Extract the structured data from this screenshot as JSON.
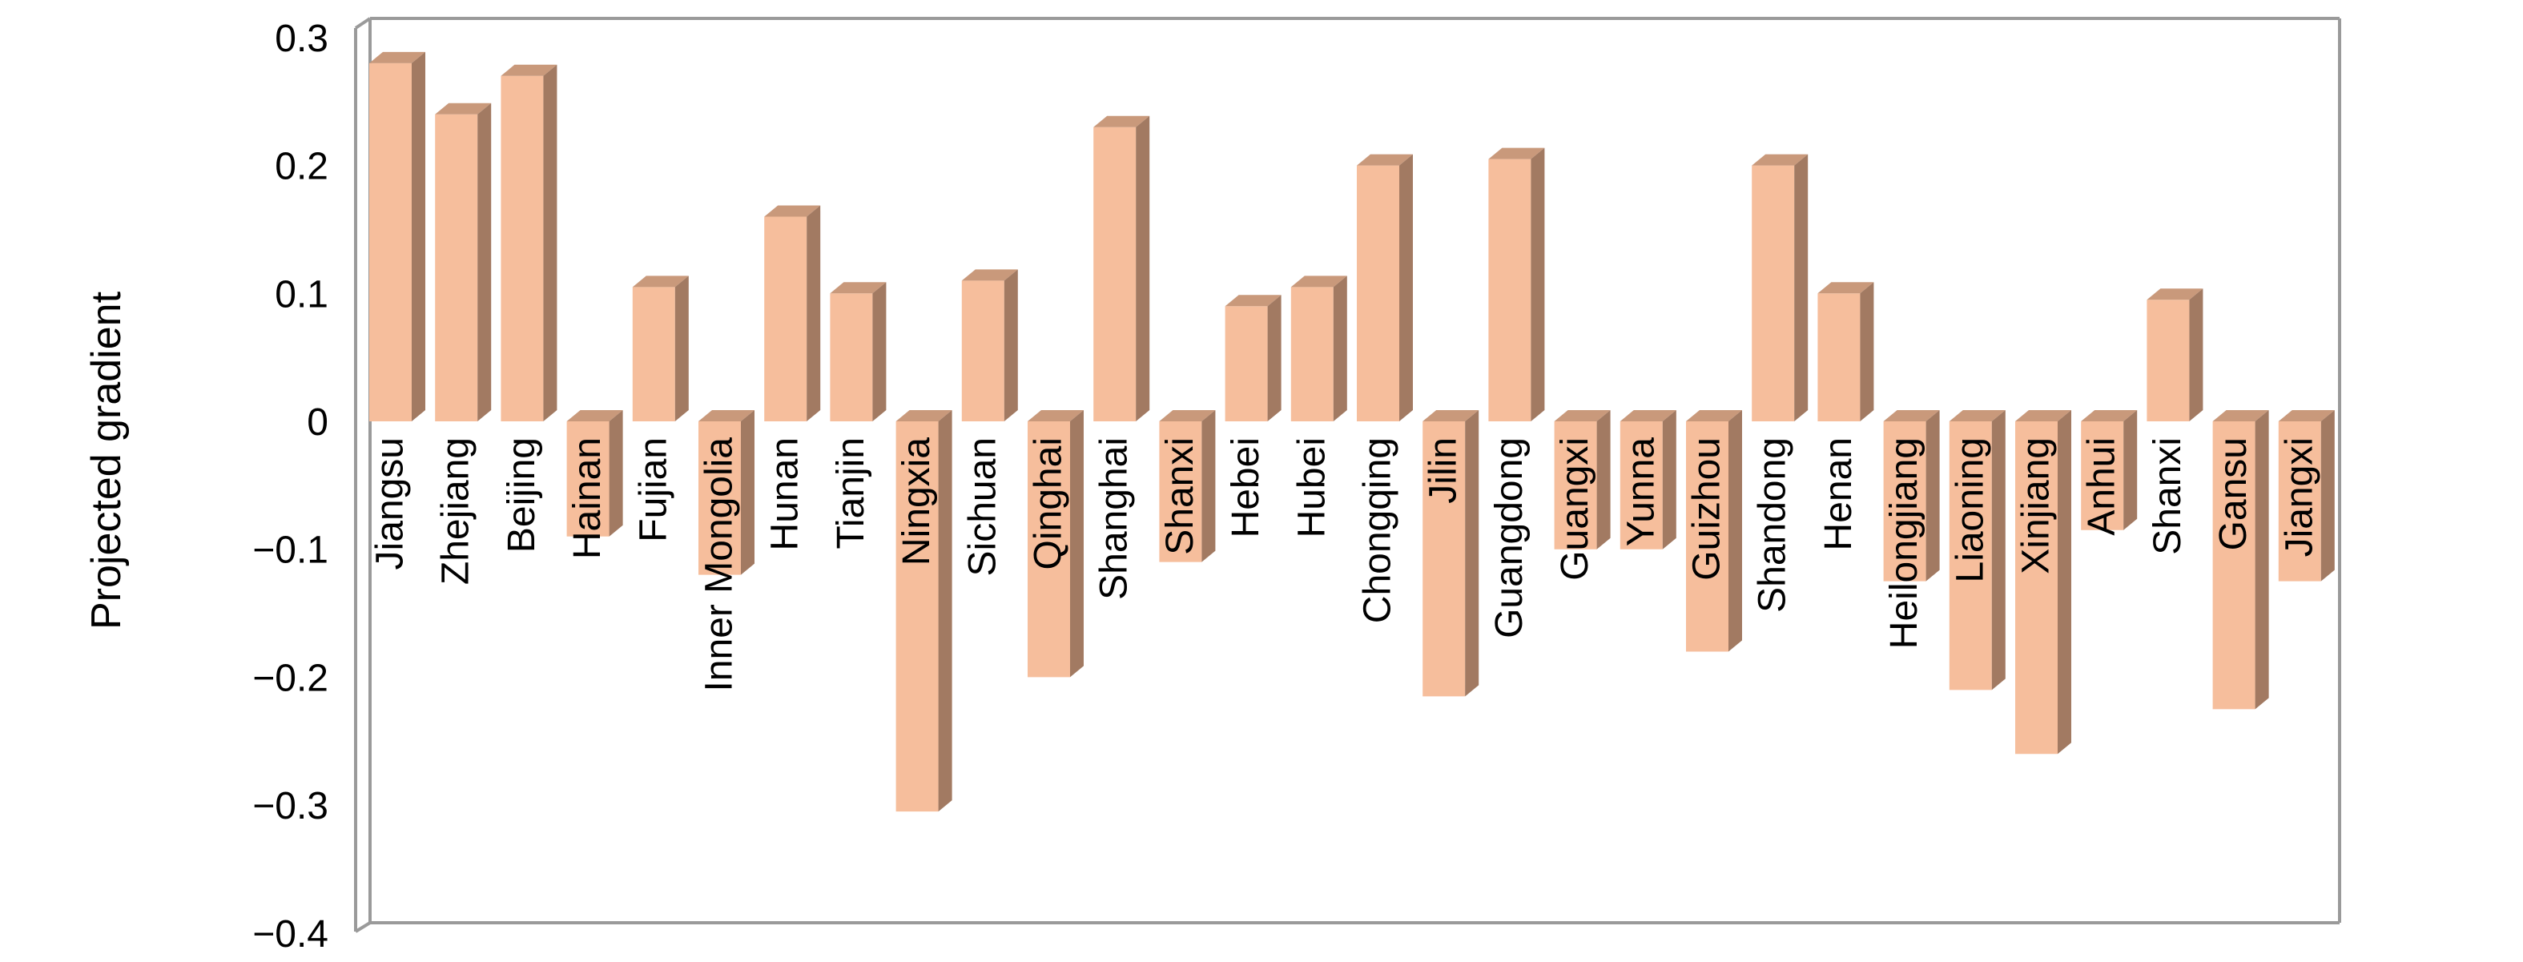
{
  "figure": {
    "background": "#ffffff"
  },
  "colors": {
    "bar_front": "#F6BE9C",
    "bar_top": "#C9997B",
    "bar_side": "#A27A62",
    "frame": "#9A9A9A",
    "text": "#000000"
  },
  "y_axis": {
    "title": "Projected gradient",
    "tick_labels": [
      "0.3",
      "0.2",
      "0.1",
      "0",
      "−0.1",
      "−0.2",
      "−0.3",
      "−0.4"
    ],
    "tick_values": [
      0.3,
      0.2,
      0.1,
      0,
      -0.1,
      -0.2,
      -0.3,
      -0.4
    ]
  },
  "chart_data": {
    "type": "bar",
    "style": "3d-column",
    "title": "",
    "xlabel": "",
    "ylabel": "Projected gradient",
    "ylim": [
      -0.4,
      0.3
    ],
    "grid": false,
    "legend": "none",
    "categories": [
      "Jiangsu",
      "Zhejiang",
      "Beijing",
      "Hainan",
      "Fujian",
      "Inner Mongolia",
      "Hunan",
      "Tianjin",
      "Ningxia",
      "Sichuan",
      "Qinghai",
      "Shanghai",
      "Shanxi",
      "Hebei",
      "Hubei",
      "Chongqing",
      "Jilin",
      "Guangdong",
      "Guangxi",
      "Yunna",
      "Guizhou",
      "Shandong",
      "Henan",
      "Heilongjiang",
      "Liaoning",
      "Xinjiang",
      "Anhui",
      "Shanxi",
      "Gansu",
      "Jiangxi"
    ],
    "values": [
      0.28,
      0.24,
      0.27,
      -0.09,
      0.105,
      -0.12,
      0.16,
      0.1,
      -0.305,
      0.11,
      -0.2,
      0.23,
      -0.11,
      0.09,
      0.105,
      0.2,
      -0.215,
      0.205,
      -0.1,
      -0.1,
      -0.18,
      0.2,
      0.1,
      -0.125,
      -0.21,
      -0.26,
      -0.085,
      0.095,
      -0.225,
      -0.125
    ]
  }
}
